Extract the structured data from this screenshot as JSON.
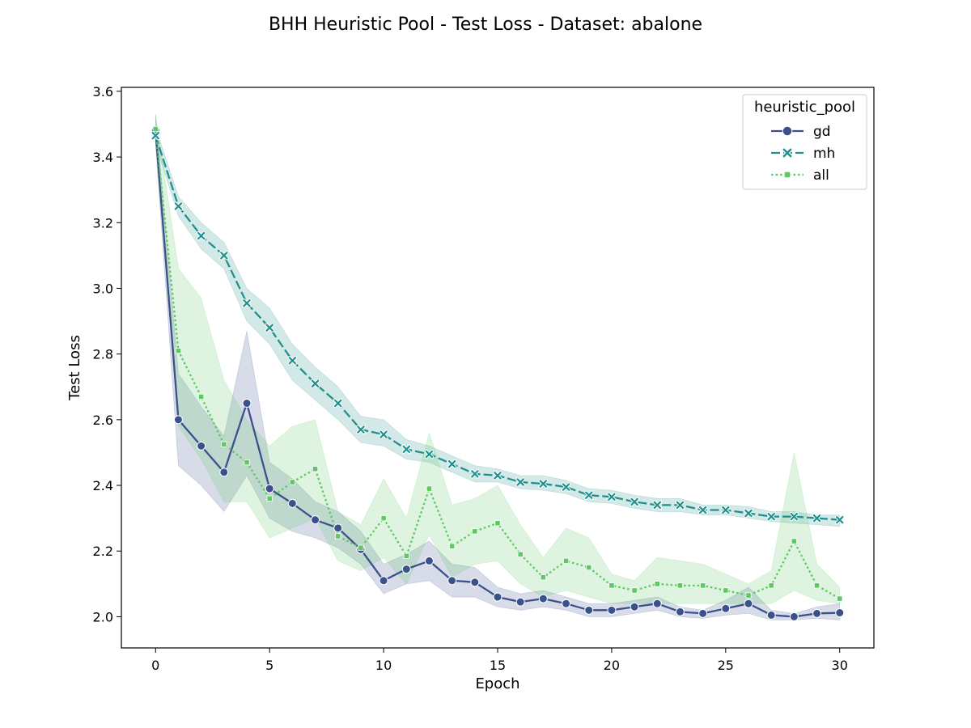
{
  "chart_data": {
    "type": "line",
    "title": "BHH Heuristic Pool - Test Loss - Dataset: abalone",
    "xlabel": "Epoch",
    "ylabel": "Test Loss",
    "xlim": [
      -1.5,
      31.5
    ],
    "ylim": [
      1.905,
      3.612
    ],
    "xticks": [
      0,
      5,
      10,
      15,
      20,
      25,
      30
    ],
    "yticks": [
      2.0,
      2.2,
      2.4,
      2.6,
      2.8,
      3.0,
      3.2,
      3.4,
      3.6
    ],
    "grid": false,
    "legend": {
      "title": "heuristic_pool",
      "position": "top-right"
    },
    "x": [
      0,
      1,
      2,
      3,
      4,
      5,
      6,
      7,
      8,
      9,
      10,
      11,
      12,
      13,
      14,
      15,
      16,
      17,
      18,
      19,
      20,
      21,
      22,
      23,
      24,
      25,
      26,
      27,
      28,
      29,
      30
    ],
    "series": [
      {
        "name": "gd",
        "color": "#3b518b",
        "line_style": "solid",
        "marker": "circle",
        "values": [
          3.48,
          2.6,
          2.52,
          2.44,
          2.65,
          2.39,
          2.345,
          2.295,
          2.27,
          2.205,
          2.11,
          2.145,
          2.17,
          2.11,
          2.105,
          2.06,
          2.045,
          2.055,
          2.04,
          2.02,
          2.02,
          2.03,
          2.04,
          2.015,
          2.01,
          2.025,
          2.04,
          2.005,
          2.0,
          2.01,
          2.012
        ],
        "ci_lower": [
          3.44,
          2.46,
          2.4,
          2.32,
          2.43,
          2.3,
          2.26,
          2.24,
          2.21,
          2.16,
          2.07,
          2.1,
          2.11,
          2.06,
          2.06,
          2.03,
          2.02,
          2.03,
          2.02,
          2.0,
          2.0,
          2.01,
          2.02,
          2.0,
          1.995,
          2.005,
          2.01,
          1.99,
          1.99,
          1.995,
          1.99
        ],
        "ci_upper": [
          3.53,
          2.74,
          2.64,
          2.55,
          2.87,
          2.47,
          2.42,
          2.35,
          2.32,
          2.26,
          2.16,
          2.19,
          2.23,
          2.16,
          2.15,
          2.09,
          2.07,
          2.08,
          2.06,
          2.04,
          2.04,
          2.05,
          2.06,
          2.03,
          2.02,
          2.05,
          2.09,
          2.02,
          2.01,
          2.03,
          2.04
        ]
      },
      {
        "name": "mh",
        "color": "#21908d",
        "line_style": "dashed",
        "marker": "x",
        "values": [
          3.465,
          3.25,
          3.16,
          3.1,
          2.955,
          2.88,
          2.78,
          2.71,
          2.65,
          2.57,
          2.555,
          2.51,
          2.495,
          2.465,
          2.435,
          2.43,
          2.41,
          2.405,
          2.395,
          2.37,
          2.365,
          2.35,
          2.34,
          2.34,
          2.325,
          2.325,
          2.315,
          2.305,
          2.305,
          2.3,
          2.295
        ],
        "ci_lower": [
          3.44,
          3.22,
          3.12,
          3.06,
          2.9,
          2.83,
          2.72,
          2.66,
          2.6,
          2.53,
          2.52,
          2.48,
          2.47,
          2.44,
          2.41,
          2.41,
          2.39,
          2.385,
          2.375,
          2.35,
          2.345,
          2.33,
          2.32,
          2.32,
          2.31,
          2.31,
          2.3,
          2.29,
          2.285,
          2.28,
          2.275
        ],
        "ci_upper": [
          3.49,
          3.28,
          3.2,
          3.14,
          3.0,
          2.94,
          2.83,
          2.76,
          2.7,
          2.61,
          2.6,
          2.54,
          2.52,
          2.49,
          2.46,
          2.45,
          2.43,
          2.43,
          2.415,
          2.39,
          2.385,
          2.37,
          2.36,
          2.36,
          2.34,
          2.34,
          2.335,
          2.32,
          2.32,
          2.31,
          2.31
        ]
      },
      {
        "name": "all",
        "color": "#5ec962",
        "line_style": "dotted",
        "marker": "square",
        "values": [
          3.485,
          2.81,
          2.67,
          2.525,
          2.47,
          2.36,
          2.41,
          2.45,
          2.245,
          2.21,
          2.3,
          2.185,
          2.39,
          2.215,
          2.26,
          2.285,
          2.19,
          2.12,
          2.17,
          2.15,
          2.095,
          2.08,
          2.1,
          2.095,
          2.095,
          2.08,
          2.065,
          2.095,
          2.23,
          2.095,
          2.055
        ],
        "ci_lower": [
          3.44,
          2.58,
          2.48,
          2.35,
          2.35,
          2.24,
          2.27,
          2.3,
          2.17,
          2.14,
          2.18,
          2.1,
          2.25,
          2.12,
          2.16,
          2.17,
          2.1,
          2.06,
          2.08,
          2.06,
          2.04,
          2.04,
          2.04,
          2.04,
          2.04,
          2.04,
          2.04,
          2.04,
          2.08,
          2.05,
          2.04
        ],
        "ci_upper": [
          3.53,
          3.06,
          2.97,
          2.72,
          2.6,
          2.52,
          2.58,
          2.6,
          2.32,
          2.28,
          2.42,
          2.3,
          2.56,
          2.34,
          2.36,
          2.4,
          2.28,
          2.18,
          2.27,
          2.24,
          2.13,
          2.11,
          2.18,
          2.17,
          2.16,
          2.13,
          2.1,
          2.14,
          2.5,
          2.16,
          2.09
        ]
      }
    ]
  }
}
